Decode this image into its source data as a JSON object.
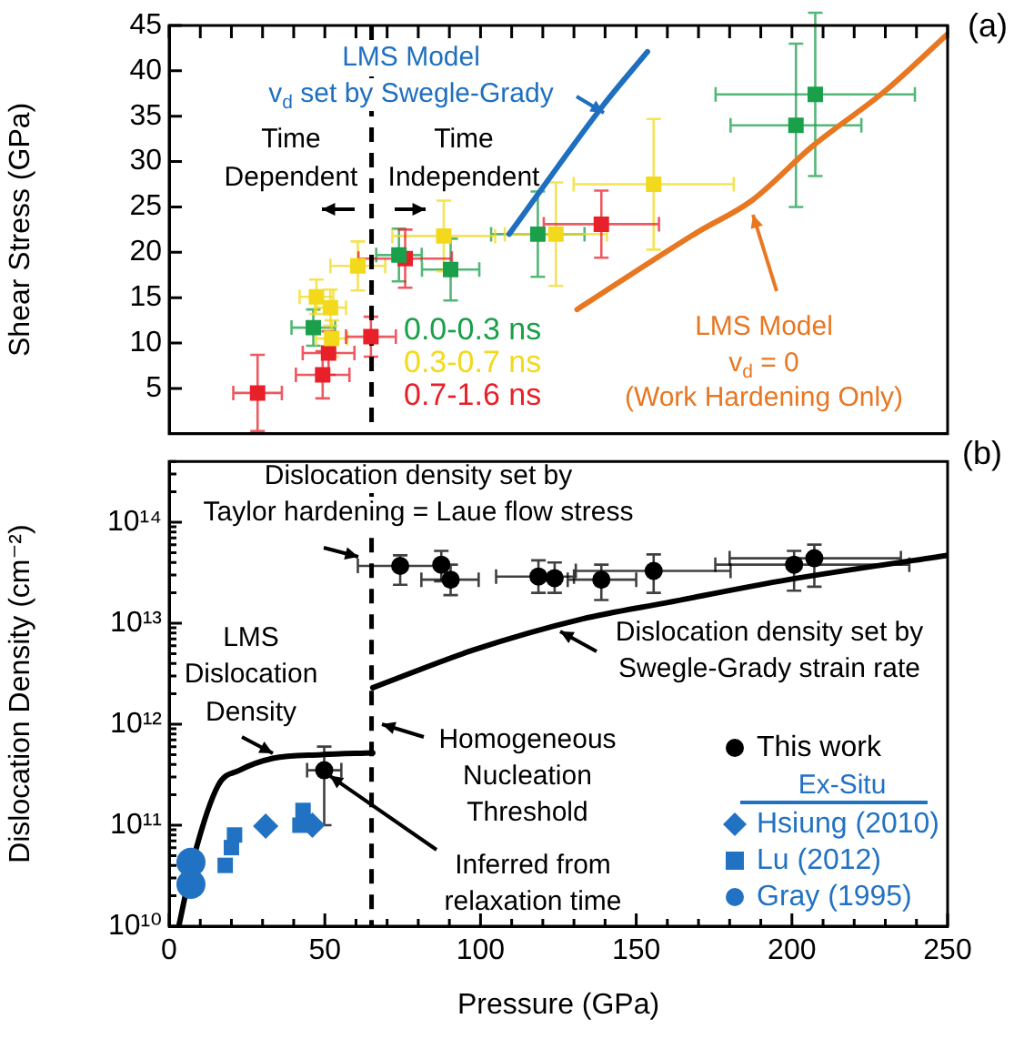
{
  "chart_data": [
    {
      "type": "scatter",
      "ylabel": "Shear Stress (GPa)",
      "xlim": [
        0,
        250
      ],
      "xticks": [
        0,
        10,
        20,
        30,
        40,
        50,
        60,
        70,
        80,
        90,
        100,
        110,
        120,
        130,
        140,
        150,
        160,
        170,
        180,
        190,
        200,
        210,
        220,
        230,
        240,
        250
      ],
      "ylim": [
        0,
        45
      ],
      "yticks": [
        5,
        10,
        15,
        20,
        25,
        30,
        35,
        40,
        45
      ],
      "tick_labels": "y",
      "grid": false,
      "legend": "bottom",
      "marker": "square",
      "ref_lines": [
        {
          "axis": "x",
          "value": 65,
          "line_style": "dashed",
          "color": "#000000"
        }
      ],
      "annotations": [
        "Time\nDependent",
        "Time\nIndependent",
        "(a)"
      ],
      "series": [
        {
          "name": "0.0-0.3 ns",
          "color": "#1a9f4a",
          "x": [
            46.3,
            73.8,
            90.4,
            118.4,
            201.3,
            207.5
          ],
          "values": [
            11.7,
            19.7,
            18.1,
            22.0,
            34.0,
            37.4
          ],
          "errors": [
            2,
            2.9,
            3.4,
            4.7,
            9,
            9
          ],
          "xerrors": [
            7,
            7.3,
            9.2,
            15,
            21,
            32
          ]
        },
        {
          "name": "0.3-0.7 ns",
          "color": "#f2d91c",
          "x": [
            47.3,
            51.8,
            52.2,
            60.6,
            88.2,
            124.2,
            155.6
          ],
          "values": [
            15.1,
            13.9,
            10.5,
            18.5,
            21.8,
            22.0,
            27.5
          ],
          "errors": [
            1.9,
            2,
            2,
            2.7,
            3.9,
            5.7,
            7.2
          ],
          "xerrors": [
            5.4,
            5,
            5,
            8.8,
            16.5,
            16.4,
            25.7
          ]
        },
        {
          "name": "0.7-1.6 ns",
          "color": "#e8202a",
          "x": [
            28.4,
            49.3,
            51.2,
            64.8,
            75.8,
            138.8
          ],
          "values": [
            4.5,
            6.5,
            8.9,
            10.7,
            19.3,
            23.1
          ],
          "errors": [
            4.2,
            2.6,
            2.4,
            2.2,
            3.2,
            3.7
          ],
          "xerrors": [
            7.8,
            8.6,
            8.3,
            8,
            15,
            18.5
          ]
        },
        {
          "name": "LMS Model\nv$_{d}$ set by Swegle-Grady",
          "type": "line",
          "marker": "none",
          "color": "#1f6fc0",
          "x": [
            109.2,
            139.4,
            153.6
          ],
          "values": [
            22.0,
            36.2,
            42.1
          ]
        },
        {
          "name": "LMS Model\nv$_{d}$ = 0\n(Work Hardening Only)",
          "type": "line",
          "marker": "none",
          "color": "#e87722",
          "x": [
            131,
            169.6,
            187.1,
            206.6,
            230,
            249.8
          ],
          "values": [
            13.7,
            22.2,
            25.7,
            31.7,
            37.8,
            44.0
          ]
        }
      ]
    },
    {
      "type": "scatter",
      "xlabel": "Pressure (GPa)",
      "ylabel": "Dislocation Density (cm⁻²)",
      "xlim": [
        0,
        250
      ],
      "xticks": [
        0,
        {
          "value": 10,
          "label": null
        },
        {
          "value": 20,
          "label": null
        },
        {
          "value": 30,
          "label": null
        },
        {
          "value": 40,
          "label": null
        },
        50,
        {
          "value": 60,
          "label": null
        },
        {
          "value": 70,
          "label": null
        },
        {
          "value": 80,
          "label": null
        },
        {
          "value": 90,
          "label": null
        },
        100,
        {
          "value": 110,
          "label": null
        },
        {
          "value": 120,
          "label": null
        },
        {
          "value": 130,
          "label": null
        },
        {
          "value": 140,
          "label": null
        },
        150,
        {
          "value": 160,
          "label": null
        },
        {
          "value": 170,
          "label": null
        },
        {
          "value": 180,
          "label": null
        },
        {
          "value": 190,
          "label": null
        },
        200,
        {
          "value": 210,
          "label": null
        },
        {
          "value": 220,
          "label": null
        },
        {
          "value": 230,
          "label": null
        },
        {
          "value": 240,
          "label": null
        },
        250
      ],
      "ylim": [
        10000000000.0,
        400000000000000.0
      ],
      "yticks": [
        {
          "value": 10000000000.0,
          "label": "10¹⁰"
        },
        {
          "value": 20000000000.0,
          "label": null
        },
        {
          "value": 30000000000.0,
          "label": null
        },
        {
          "value": 40000000000.0,
          "label": null
        },
        {
          "value": 50000000000.0,
          "label": null
        },
        {
          "value": 60000000000.0,
          "label": null
        },
        {
          "value": 70000000000.0,
          "label": null
        },
        {
          "value": 80000000000.0,
          "label": null
        },
        {
          "value": 90000000000.0,
          "label": null
        },
        {
          "value": 100000000000.0,
          "label": "10¹¹"
        },
        {
          "value": 200000000000.0,
          "label": null
        },
        {
          "value": 300000000000.0,
          "label": null
        },
        {
          "value": 400000000000.0,
          "label": null
        },
        {
          "value": 500000000000.0,
          "label": null
        },
        {
          "value": 600000000000.0,
          "label": null
        },
        {
          "value": 700000000000.0,
          "label": null
        },
        {
          "value": 800000000000.0,
          "label": null
        },
        {
          "value": 900000000000.0,
          "label": null
        },
        {
          "value": 1000000000000.0,
          "label": "10¹²"
        },
        {
          "value": 2000000000000.0,
          "label": null
        },
        {
          "value": 3000000000000.0,
          "label": null
        },
        {
          "value": 4000000000000.0,
          "label": null
        },
        {
          "value": 5000000000000.0,
          "label": null
        },
        {
          "value": 6000000000000.0,
          "label": null
        },
        {
          "value": 7000000000000.0,
          "label": null
        },
        {
          "value": 8000000000000.0,
          "label": null
        },
        {
          "value": 9000000000000.0,
          "label": null
        },
        {
          "value": 10000000000000.0,
          "label": "10¹³"
        },
        {
          "value": 20000000000000.0,
          "label": null
        },
        {
          "value": 30000000000000.0,
          "label": null
        },
        {
          "value": 40000000000000.0,
          "label": null
        },
        {
          "value": 50000000000000.0,
          "label": null
        },
        {
          "value": 60000000000000.0,
          "label": null
        },
        {
          "value": 70000000000000.0,
          "label": null
        },
        {
          "value": 80000000000000.0,
          "label": null
        },
        {
          "value": 90000000000000.0,
          "label": null
        },
        {
          "value": 100000000000000.0,
          "label": "10¹⁴"
        },
        {
          "value": 200000000000000.0,
          "label": null
        },
        {
          "value": 300000000000000.0,
          "label": null
        },
        {
          "value": 400000000000000.0,
          "label": null
        }
      ],
      "log": "y",
      "grid": false,
      "legend": "bottom right",
      "ref_lines": [
        {
          "axis": "x",
          "value": 65,
          "label": "Homogeneous\nNucleation\nThreshold",
          "line_style": "dashed",
          "color": "#000000"
        }
      ],
      "annotations": [
        "Dislocation density set by\nTaylor hardening = Laue flow stress",
        {
          "text": "Inferred from\nrelaxation time",
          "x": 49.8,
          "y": 350000000000.0
        },
        "Ex-Situ",
        "(b)"
      ],
      "series": [
        {
          "name": "This work",
          "color": "#000000",
          "marker": "circle",
          "x": [
            49.8,
            74.2,
            75.2,
            87.4,
            90.4,
            118.6,
            123.8,
            138.8,
            155.6,
            200.7,
            207.2
          ],
          "values": [
            350000000000.0,
            37000000000000.0,
            null,
            38000000000000.0,
            27000000000000.0,
            29000000000000.0,
            28000000000000.0,
            27000000000000.0,
            33000000000000.0,
            38000000000000.0,
            44000000000000.0
          ],
          "errors": [
            [
              100000000000.0,
              600000000000.0
            ],
            [
              24000000000000.0,
              47000000000000.0
            ],
            null,
            [
              26000000000000.0,
              52000000000000.0
            ],
            [
              19000000000000.0,
              38000000000000.0
            ],
            [
              20000000000000.0,
              42000000000000.0
            ],
            [
              20000000000000.0,
              40000000000000.0
            ],
            [
              17000000000000.0,
              38000000000000.0
            ],
            [
              20000000000000.0,
              48000000000000.0
            ],
            [
              21000000000000.0,
              52000000000000.0
            ],
            [
              23000000000000.0,
              60000000000000.0
            ]
          ],
          "xerrors": [
            5.5,
            [
              60.6,
              87.8
            ],
            null,
            null,
            [
              81,
              99.4
            ],
            [
              105,
              130
            ],
            null,
            [
              128,
              150
            ],
            [
              130.6,
              180.3
            ],
            [
              175.4,
              237.7
            ],
            [
              180,
              235
            ]
          ]
        },
        {
          "name": "Hsiung (2010)",
          "color": "#2272c3",
          "marker": "diamond",
          "x": [
            31,
            46
          ],
          "values": [
            98000000000.0,
            100000000000.0
          ]
        },
        {
          "name": "Lu (2012)",
          "color": "#2272c3",
          "marker": "square",
          "x": [
            18,
            20,
            21,
            42,
            43
          ],
          "values": [
            40000000000.0,
            60000000000.0,
            80000000000.0,
            100000000000.0,
            140000000000.0
          ]
        },
        {
          "name": "Gray (1995)",
          "color": "#2272c3",
          "marker": "circle",
          "x": [
            7,
            7
          ],
          "values": [
            26000000000.0,
            43000000000.0
          ]
        },
        {
          "name": "LMS\nDislocation\nDensity",
          "type": "line",
          "marker": "none",
          "color": "#000000",
          "x": [
            3.1,
            8,
            15.8,
            22.6,
            33.3,
            48.9,
            65.4
          ],
          "values": [
            10000000000.0,
            49000000000.0,
            250000000000.0,
            350000000000.0,
            460000000000.0,
            500000000000.0,
            520000000000.0
          ]
        },
        {
          "name": "Dislocation density set by\nSwegle-Grady strain rate",
          "type": "line",
          "marker": "none",
          "color": "#000000",
          "x": [
            65.4,
            97.5,
            132.6,
            159.9,
            198.8,
            249.8
          ],
          "values": [
            2300000000000.0,
            5400000000000.0,
            11000000000000.0,
            16000000000000.0,
            27000000000000.0,
            47000000000000.0
          ]
        }
      ]
    }
  ]
}
